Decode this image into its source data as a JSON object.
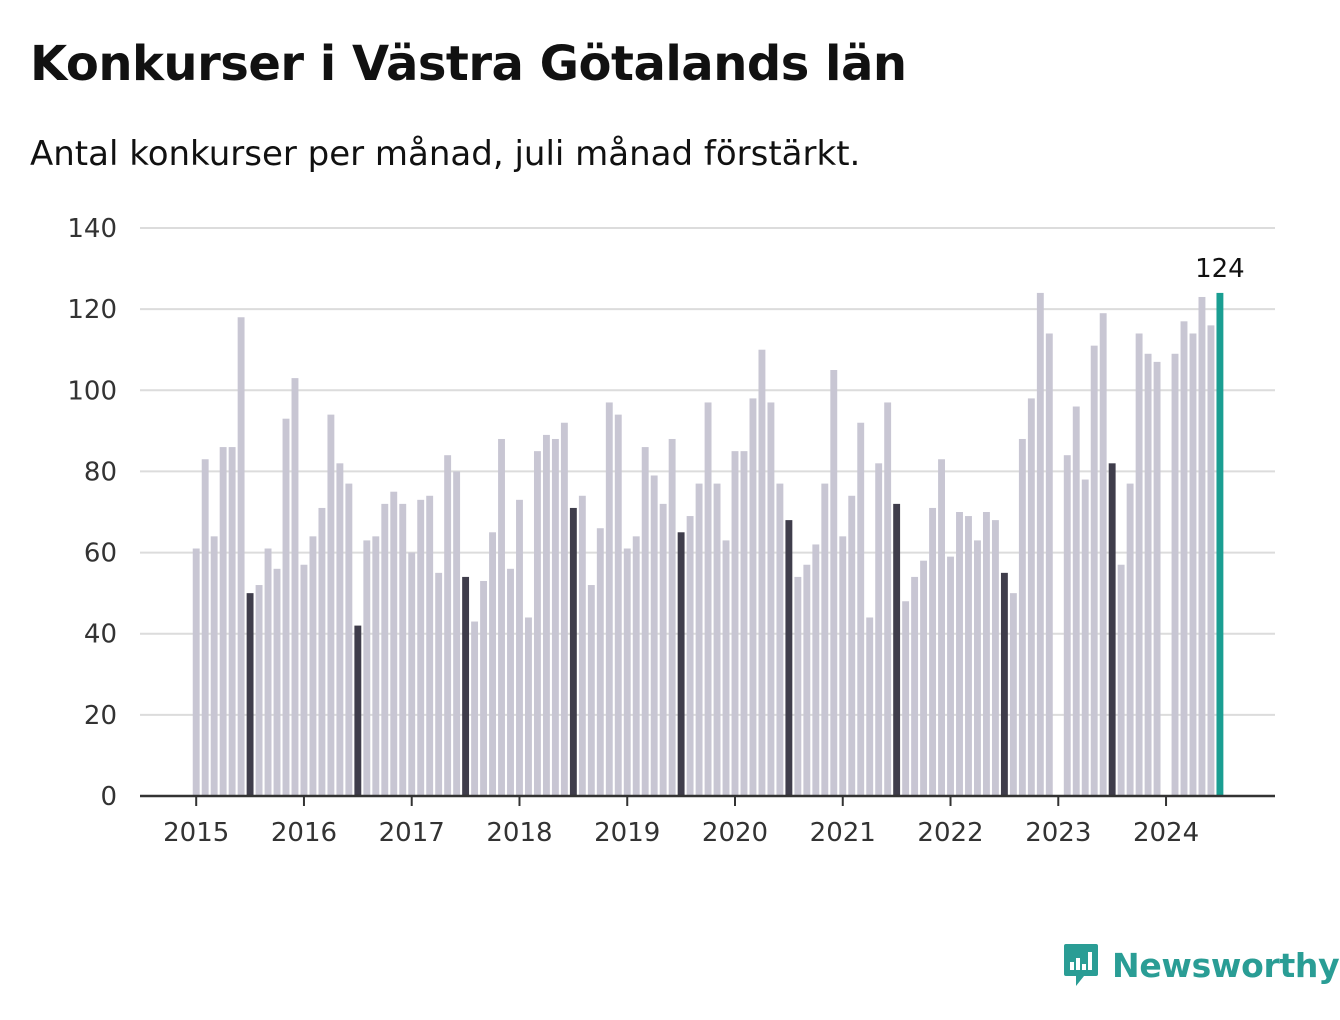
{
  "header": {
    "title": "Konkurser i Västra Götalands län",
    "subtitle": "Antal konkurser per månad, juli månad förstärkt."
  },
  "brand": {
    "name": "Newsworthy",
    "icon": "newsworthy-logo-icon"
  },
  "colors": {
    "bar": "#c8c6d3",
    "highlight": "#3f3d4b",
    "latest": "#1a9e92",
    "grid": "#dcdcdc",
    "axis": "#333333"
  },
  "chart_data": {
    "type": "bar",
    "title": "Konkurser i Västra Götalands län",
    "subtitle": "Antal konkurser per månad, juli månad förstärkt.",
    "xlabel": "",
    "ylabel": "",
    "ylim": [
      0,
      140
    ],
    "yticks": [
      0,
      20,
      40,
      60,
      80,
      100,
      120,
      140
    ],
    "xtick_labels": [
      "2015",
      "2016",
      "2017",
      "2018",
      "2019",
      "2020",
      "2021",
      "2022",
      "2023",
      "2024"
    ],
    "grid": true,
    "highlight_month": "juli",
    "annotation": {
      "label": "124",
      "for": "2024-07"
    },
    "series": [
      {
        "year": "2015",
        "values": [
          61,
          83,
          64,
          86,
          86,
          118,
          50,
          52,
          61,
          56,
          93,
          103
        ]
      },
      {
        "year": "2016",
        "values": [
          57,
          64,
          71,
          94,
          82,
          77,
          42,
          63,
          64,
          72,
          75,
          72
        ]
      },
      {
        "year": "2017",
        "values": [
          60,
          73,
          74,
          55,
          84,
          80,
          54,
          43,
          53,
          65,
          88,
          56
        ]
      },
      {
        "year": "2018",
        "values": [
          73,
          44,
          85,
          89,
          88,
          92,
          71,
          74,
          52,
          66,
          97,
          94
        ]
      },
      {
        "year": "2019",
        "values": [
          61,
          64,
          86,
          79,
          72,
          88,
          65,
          69,
          77,
          97,
          77,
          63
        ]
      },
      {
        "year": "2020",
        "values": [
          85,
          85,
          98,
          110,
          97,
          77,
          68,
          54,
          57,
          62,
          77,
          105
        ]
      },
      {
        "year": "2021",
        "values": [
          64,
          74,
          92,
          44,
          82,
          97,
          72,
          48,
          54,
          58,
          71,
          83
        ]
      },
      {
        "year": "2022",
        "values": [
          59,
          70,
          69,
          63,
          70,
          68,
          55,
          50,
          88,
          98,
          124,
          114
        ]
      },
      {
        "year": "2023",
        "values": [
          null,
          84,
          96,
          78,
          111,
          119,
          82,
          57,
          77,
          114,
          109,
          107
        ]
      },
      {
        "year": "2024",
        "values": [
          null,
          109,
          117,
          114,
          123,
          116,
          124
        ]
      }
    ]
  }
}
